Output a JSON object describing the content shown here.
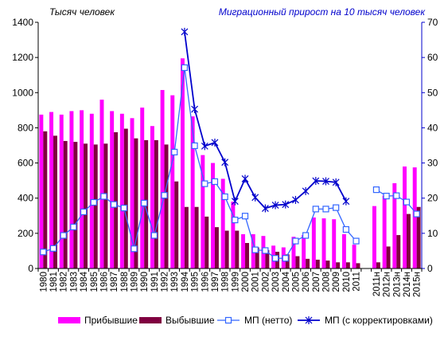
{
  "chart_data": {
    "type": "bar",
    "left_axis_title": "Тысяч человек",
    "right_axis_title": "Миграционный прирост на 10 тысяч человек",
    "y_left_ticks": [
      "0",
      "200",
      "400",
      "600",
      "800",
      "1000",
      "1200",
      "1400"
    ],
    "y_right_ticks": [
      "0",
      "10",
      "20",
      "30",
      "40",
      "50",
      "60",
      "70"
    ],
    "ylim_left": [
      0,
      1400
    ],
    "ylim_right": [
      0,
      70
    ],
    "grid": false,
    "legend_position": "bottom",
    "categories": [
      "1980",
      "1981",
      "1982",
      "1983",
      "1984",
      "1985",
      "1986",
      "1987",
      "1988",
      "1989",
      "1990",
      "1991",
      "1992",
      "1993",
      "1994",
      "1995",
      "1996",
      "1997",
      "1998",
      "1999",
      "2000",
      "2001",
      "2002",
      "2003",
      "2004",
      "2005",
      "2006",
      "2007",
      "2008",
      "2009",
      "2010",
      "2011",
      "",
      "2011н",
      "2012н",
      "2013н",
      "2014н",
      "2015н"
    ],
    "series": [
      {
        "name": "Прибывшие",
        "kind": "bar",
        "axis": "left",
        "color": "#ff00ff",
        "values": [
          875,
          890,
          875,
          895,
          900,
          880,
          960,
          895,
          880,
          855,
          915,
          810,
          1015,
          985,
          1195,
          865,
          645,
          600,
          510,
          380,
          195,
          195,
          185,
          130,
          120,
          180,
          190,
          290,
          285,
          280,
          195,
          135,
          null,
          355,
          415,
          485,
          580,
          575
        ]
      },
      {
        "name": "Выбывшие",
        "kind": "bar",
        "axis": "left",
        "color": "#800040",
        "values": [
          780,
          755,
          725,
          720,
          710,
          705,
          710,
          775,
          795,
          740,
          730,
          730,
          705,
          495,
          350,
          350,
          295,
          235,
          215,
          215,
          145,
          120,
          105,
          95,
          80,
          70,
          55,
          50,
          45,
          35,
          35,
          30,
          null,
          35,
          125,
          190,
          310,
          350
        ]
      },
      {
        "name": "МП  (нетто)",
        "kind": "line",
        "axis": "right",
        "color": "#3366ff",
        "values": [
          4.7,
          5.7,
          9.4,
          11.8,
          16.1,
          18.8,
          20.5,
          18.2,
          17.2,
          5.6,
          18.6,
          9.4,
          20.8,
          33.1,
          57.1,
          34.9,
          24.1,
          24.7,
          20.4,
          13.8,
          14.9,
          5.3,
          5.1,
          2.9,
          2.9,
          7.8,
          9.4,
          16.9,
          16.9,
          17.3,
          11.1,
          7.8,
          null,
          22.4,
          20.6,
          20.7,
          18.9,
          15.5
        ]
      },
      {
        "name": "МП  (с корректировками)",
        "kind": "line",
        "axis": "right",
        "color": "#0000cc",
        "values": [
          null,
          null,
          null,
          null,
          null,
          null,
          null,
          null,
          null,
          null,
          null,
          null,
          null,
          null,
          67.3,
          45.3,
          34.8,
          35.8,
          30.2,
          19.1,
          25.5,
          20.2,
          17.1,
          18.0,
          18.2,
          19.5,
          22.0,
          24.9,
          24.8,
          24.5,
          19.1,
          null,
          null,
          null,
          null,
          null,
          null,
          null
        ]
      }
    ]
  }
}
